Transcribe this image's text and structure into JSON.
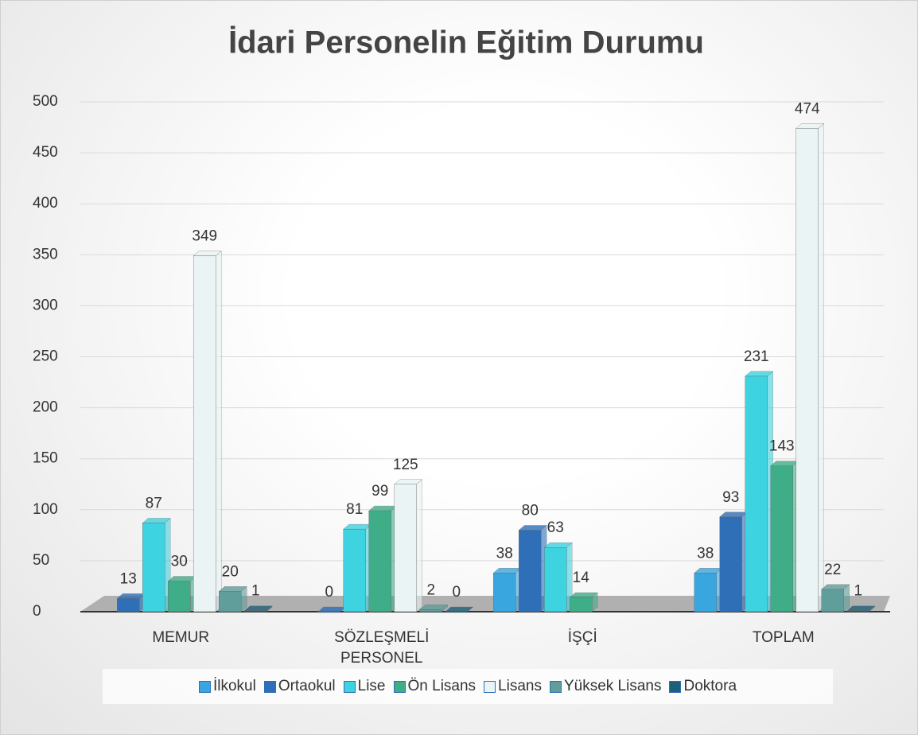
{
  "chart_data": {
    "type": "bar",
    "title": "İdari Personelin Eğitim Durumu",
    "categories": [
      "MEMUR",
      "SÖZLEŞMELİ PERSONEL",
      "İŞÇİ",
      "TOPLAM"
    ],
    "series": [
      {
        "name": "İlkokul",
        "color": "#3aa6e0",
        "values": [
          null,
          null,
          38,
          38
        ]
      },
      {
        "name": "Ortaokul",
        "color": "#2f6fb8",
        "values": [
          13,
          0,
          80,
          93
        ]
      },
      {
        "name": "Lise",
        "color": "#3dd3e0",
        "values": [
          87,
          81,
          63,
          231
        ]
      },
      {
        "name": "Ön Lisans",
        "color": "#3fae88",
        "values": [
          30,
          99,
          14,
          143
        ]
      },
      {
        "name": "Lisans",
        "color": "#eaf4f4",
        "values": [
          349,
          125,
          null,
          474
        ]
      },
      {
        "name": "Yüksek Lisans",
        "color": "#5f9e9a",
        "values": [
          20,
          2,
          null,
          22
        ]
      },
      {
        "name": "Doktora",
        "color": "#1f5f7a",
        "values": [
          1,
          0,
          null,
          1
        ]
      }
    ],
    "ylim": [
      0,
      500
    ],
    "yticks": [
      0,
      50,
      100,
      150,
      200,
      250,
      300,
      350,
      400,
      450,
      500
    ],
    "grid": true,
    "legend": "bottom"
  }
}
